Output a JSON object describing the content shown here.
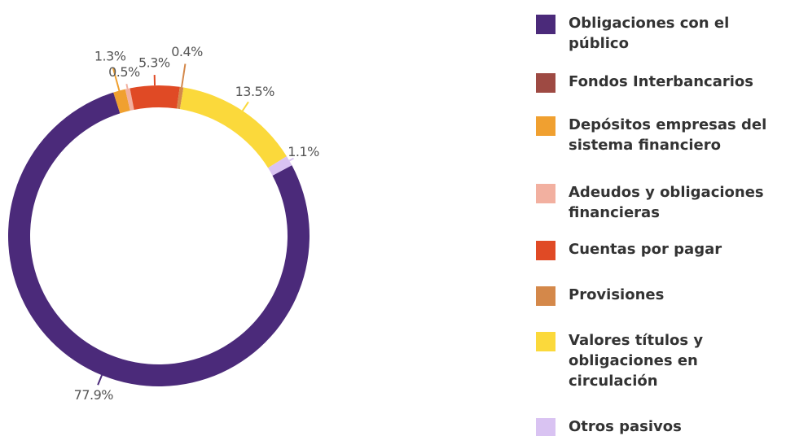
{
  "chart_data": {
    "type": "pie",
    "donut": true,
    "categories": [
      "Obligaciones con el público",
      "Fondos Interbancarios",
      "Depósitos empresas del sistema financiero",
      "Adeudos y obligaciones financieras",
      "Cuentas por pagar",
      "Provisiones",
      "Valores títulos y obligaciones en circulación",
      "Otros pasivos"
    ],
    "values": [
      77.9,
      0,
      1.3,
      0.5,
      5.3,
      0.4,
      13.5,
      1.1
    ],
    "value_labels": [
      "77.9%",
      null,
      "1.3%",
      "0.5%",
      "5.3%",
      "0.4%",
      "13.5%",
      "1.1%"
    ],
    "colors": [
      "#4b2a7a",
      "#9e4a43",
      "#f0a030",
      "#f2b0a0",
      "#e04a25",
      "#d4884a",
      "#fbd93b",
      "#d9c3f2"
    ],
    "legend": "right"
  }
}
